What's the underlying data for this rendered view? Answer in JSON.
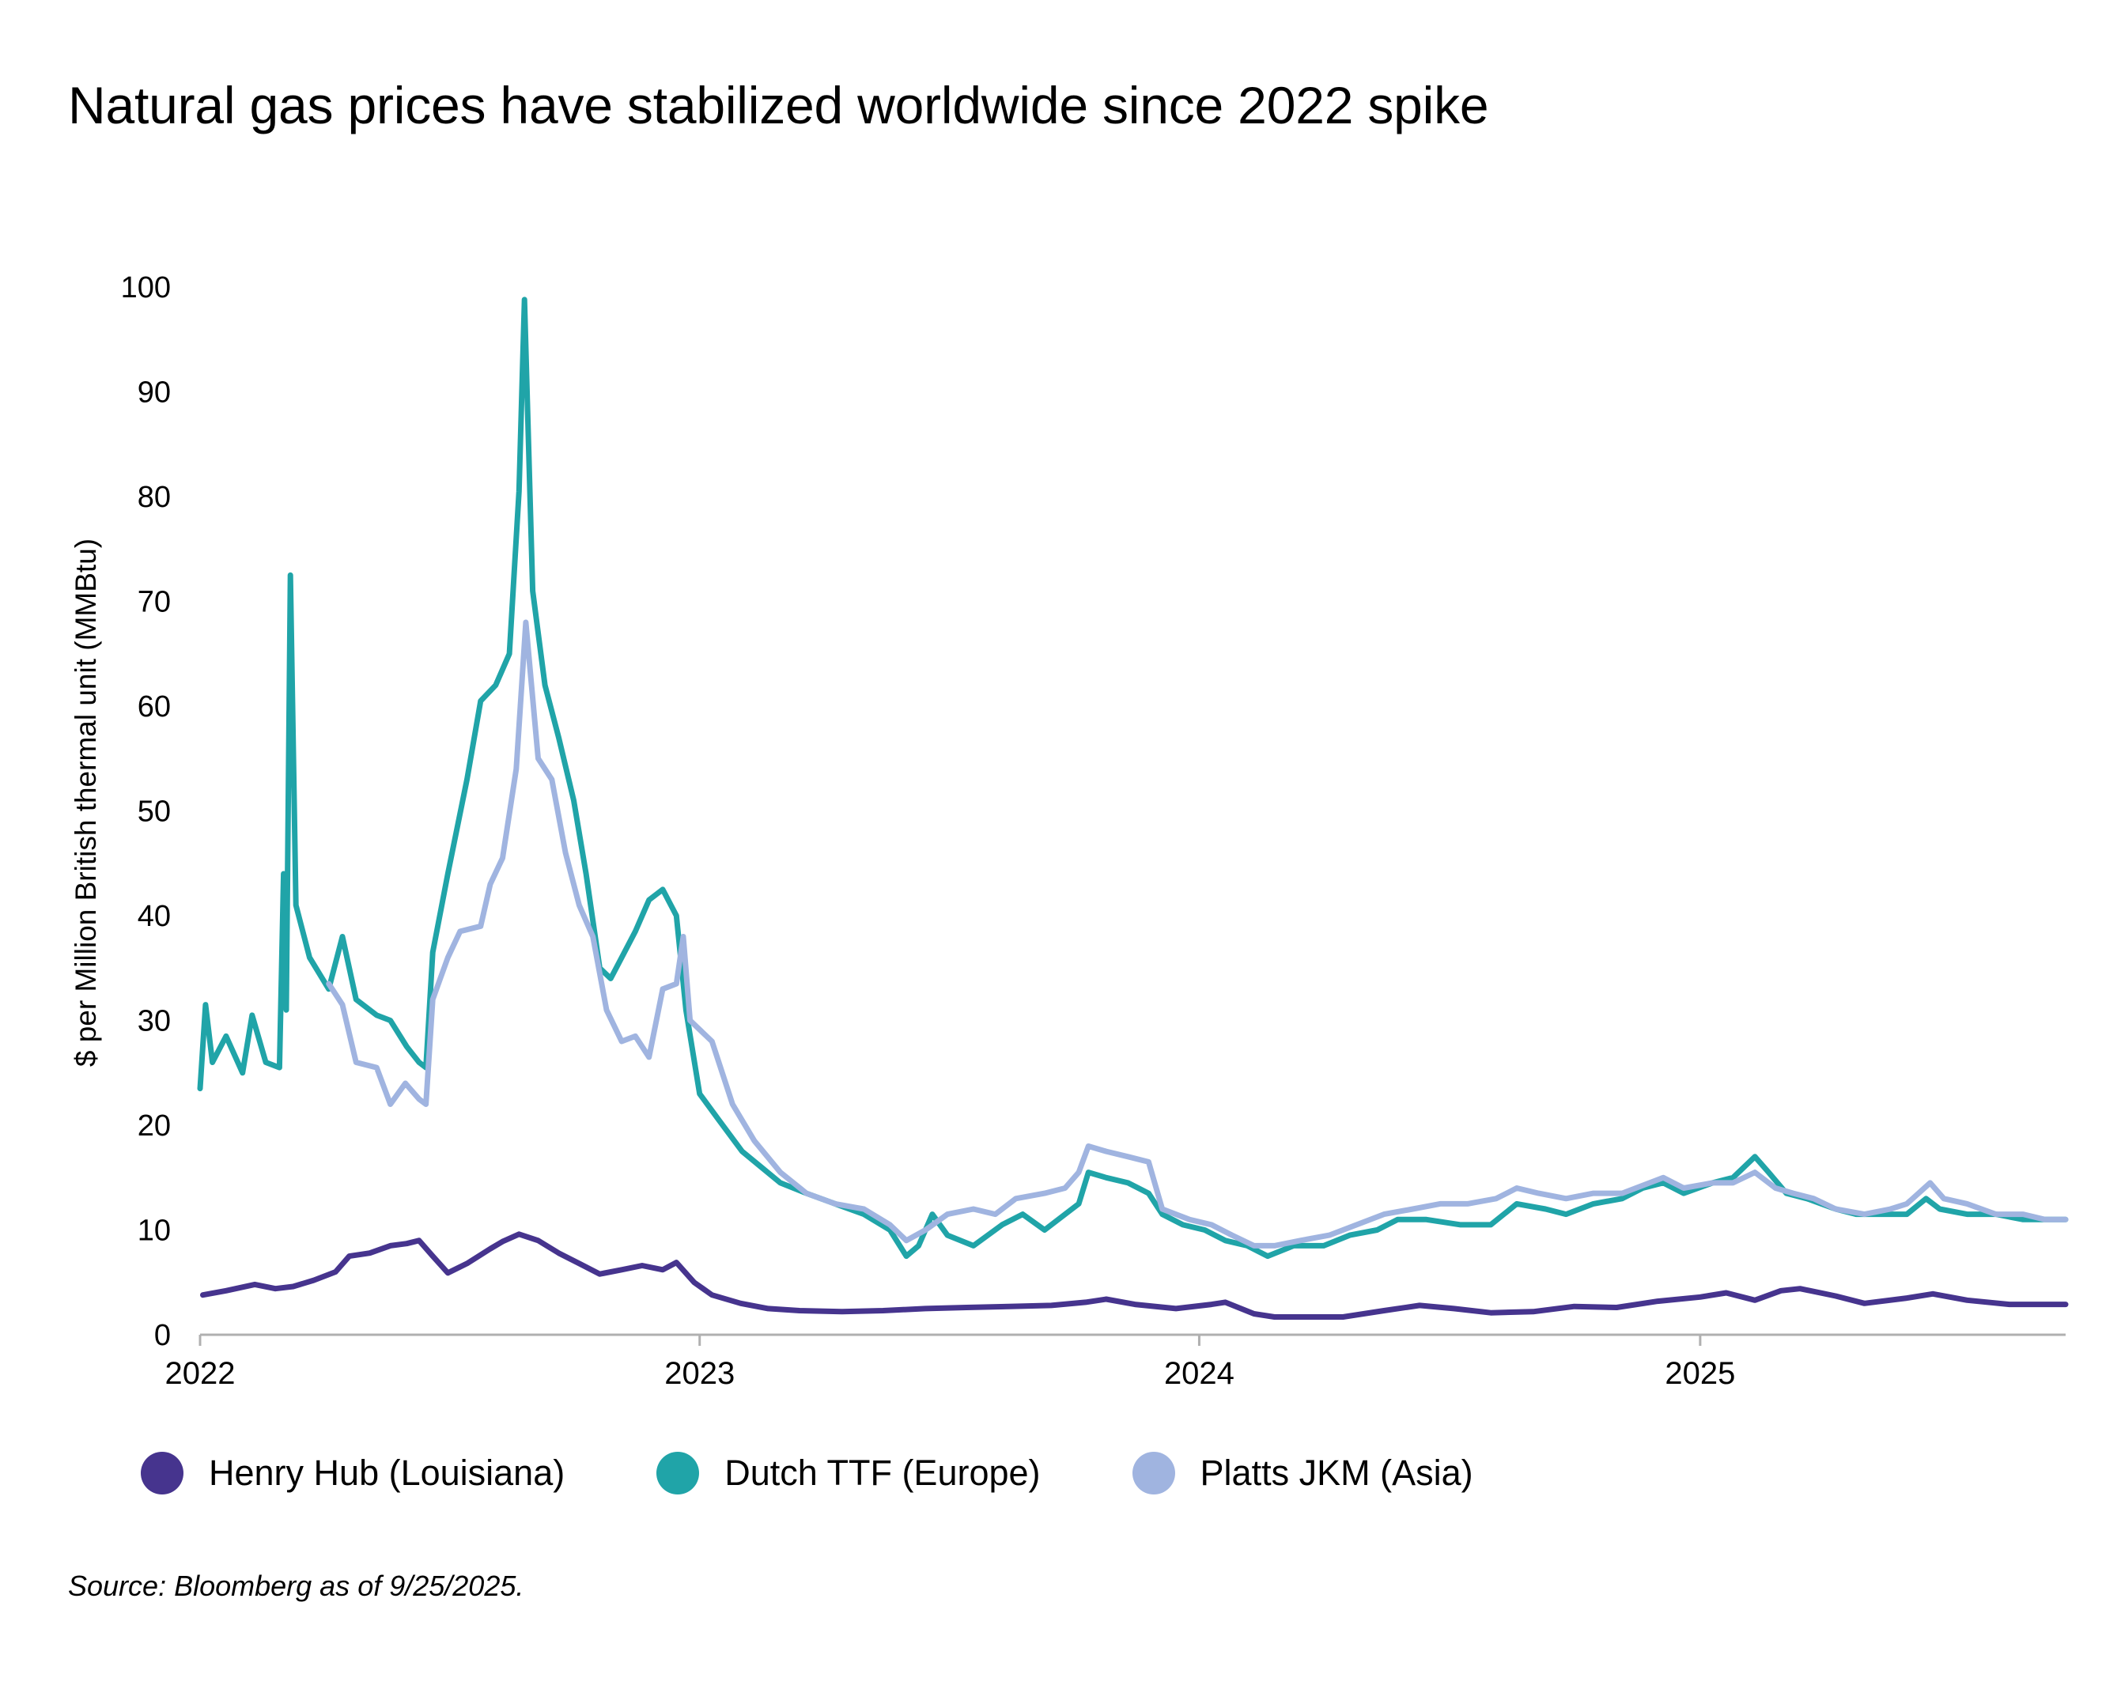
{
  "title": "Natural gas prices have stabilized worldwide since 2022 spike",
  "source": "Source: Bloomberg as of 9/25/2025.",
  "colors": {
    "henry_hub": "#46348E",
    "dutch_ttf": "#20A4A8",
    "platts_jkm": "#A0B4E0",
    "axis": "#B0B0B0"
  },
  "legend": [
    {
      "label": "Henry Hub (Louisiana)",
      "color": "#46348E"
    },
    {
      "label": "Dutch TTF (Europe)",
      "color": "#20A4A8"
    },
    {
      "label": "Platts JKM (Asia)",
      "color": "#A0B4E0"
    }
  ],
  "chart_data": {
    "type": "line",
    "title": "Natural gas prices have stabilized worldwide since 2022 spike",
    "xlabel": "",
    "ylabel": "$ per Million British thermal unit (MMBtu)",
    "ylim": [
      0,
      100
    ],
    "yticks": [
      0,
      10,
      20,
      30,
      40,
      50,
      60,
      70,
      80,
      90,
      100
    ],
    "xlim": [
      "2022-01-01",
      "2025-09-25"
    ],
    "xticks": [
      {
        "label": "2022",
        "value": "2022-01-01"
      },
      {
        "label": "2023",
        "value": "2023-01-01"
      },
      {
        "label": "2024",
        "value": "2024-01-01"
      },
      {
        "label": "2025",
        "value": "2025-01-01"
      }
    ],
    "grid": false,
    "legend_position": "bottom",
    "series": [
      {
        "name": "Henry Hub (Louisiana)",
        "color": "#46348E",
        "points": [
          [
            "2022-01-03",
            3.8
          ],
          [
            "2022-01-20",
            4.2
          ],
          [
            "2022-02-10",
            4.8
          ],
          [
            "2022-02-25",
            4.4
          ],
          [
            "2022-03-10",
            4.6
          ],
          [
            "2022-03-25",
            5.2
          ],
          [
            "2022-04-10",
            6.0
          ],
          [
            "2022-04-20",
            7.5
          ],
          [
            "2022-05-05",
            7.8
          ],
          [
            "2022-05-20",
            8.5
          ],
          [
            "2022-06-01",
            8.7
          ],
          [
            "2022-06-10",
            9.0
          ],
          [
            "2022-06-20",
            7.5
          ],
          [
            "2022-07-01",
            5.9
          ],
          [
            "2022-07-15",
            6.8
          ],
          [
            "2022-08-01",
            8.2
          ],
          [
            "2022-08-10",
            8.9
          ],
          [
            "2022-08-22",
            9.6
          ],
          [
            "2022-09-05",
            9.0
          ],
          [
            "2022-09-20",
            7.8
          ],
          [
            "2022-10-05",
            6.8
          ],
          [
            "2022-10-20",
            5.8
          ],
          [
            "2022-11-05",
            6.2
          ],
          [
            "2022-11-20",
            6.6
          ],
          [
            "2022-12-05",
            6.2
          ],
          [
            "2022-12-15",
            6.9
          ],
          [
            "2022-12-28",
            5.0
          ],
          [
            "2023-01-10",
            3.8
          ],
          [
            "2023-01-31",
            3.0
          ],
          [
            "2023-02-20",
            2.5
          ],
          [
            "2023-03-15",
            2.3
          ],
          [
            "2023-04-15",
            2.2
          ],
          [
            "2023-05-15",
            2.3
          ],
          [
            "2023-06-15",
            2.5
          ],
          [
            "2023-07-15",
            2.6
          ],
          [
            "2023-08-15",
            2.7
          ],
          [
            "2023-09-15",
            2.8
          ],
          [
            "2023-10-10",
            3.1
          ],
          [
            "2023-10-25",
            3.4
          ],
          [
            "2023-11-15",
            2.9
          ],
          [
            "2023-12-15",
            2.5
          ],
          [
            "2024-01-10",
            2.9
          ],
          [
            "2024-01-20",
            3.1
          ],
          [
            "2024-02-10",
            2.0
          ],
          [
            "2024-02-25",
            1.7
          ],
          [
            "2024-03-15",
            1.7
          ],
          [
            "2024-04-15",
            1.7
          ],
          [
            "2024-05-15",
            2.3
          ],
          [
            "2024-06-10",
            2.8
          ],
          [
            "2024-07-05",
            2.5
          ],
          [
            "2024-08-01",
            2.1
          ],
          [
            "2024-09-01",
            2.2
          ],
          [
            "2024-10-01",
            2.7
          ],
          [
            "2024-11-01",
            2.6
          ],
          [
            "2024-12-01",
            3.2
          ],
          [
            "2025-01-01",
            3.6
          ],
          [
            "2025-01-20",
            4.0
          ],
          [
            "2025-02-10",
            3.3
          ],
          [
            "2025-03-01",
            4.2
          ],
          [
            "2025-03-15",
            4.4
          ],
          [
            "2025-04-10",
            3.7
          ],
          [
            "2025-05-01",
            3.0
          ],
          [
            "2025-06-01",
            3.5
          ],
          [
            "2025-06-20",
            3.9
          ],
          [
            "2025-07-15",
            3.3
          ],
          [
            "2025-08-15",
            2.9
          ],
          [
            "2025-09-25",
            2.9
          ]
        ]
      },
      {
        "name": "Dutch TTF (Europe)",
        "color": "#20A4A8",
        "points": [
          [
            "2022-01-01",
            23.5
          ],
          [
            "2022-01-05",
            31.5
          ],
          [
            "2022-01-10",
            26.0
          ],
          [
            "2022-01-20",
            28.5
          ],
          [
            "2022-02-01",
            25.0
          ],
          [
            "2022-02-08",
            30.5
          ],
          [
            "2022-02-18",
            26.0
          ],
          [
            "2022-02-28",
            25.5
          ],
          [
            "2022-03-03",
            44.0
          ],
          [
            "2022-03-05",
            31.0
          ],
          [
            "2022-03-08",
            72.5
          ],
          [
            "2022-03-12",
            41.0
          ],
          [
            "2022-03-22",
            36.0
          ],
          [
            "2022-04-05",
            33.0
          ],
          [
            "2022-04-15",
            38.0
          ],
          [
            "2022-04-25",
            32.0
          ],
          [
            "2022-05-10",
            30.5
          ],
          [
            "2022-05-20",
            30.0
          ],
          [
            "2022-06-01",
            27.5
          ],
          [
            "2022-06-10",
            26.0
          ],
          [
            "2022-06-15",
            25.5
          ],
          [
            "2022-06-20",
            36.5
          ],
          [
            "2022-07-01",
            44.0
          ],
          [
            "2022-07-15",
            53.0
          ],
          [
            "2022-07-25",
            60.5
          ],
          [
            "2022-08-05",
            62.0
          ],
          [
            "2022-08-15",
            65.0
          ],
          [
            "2022-08-22",
            80.5
          ],
          [
            "2022-08-26",
            98.8
          ],
          [
            "2022-09-01",
            71.0
          ],
          [
            "2022-09-10",
            62.0
          ],
          [
            "2022-09-20",
            57.0
          ],
          [
            "2022-10-01",
            51.0
          ],
          [
            "2022-10-10",
            44.0
          ],
          [
            "2022-10-20",
            35.0
          ],
          [
            "2022-10-28",
            34.0
          ],
          [
            "2022-11-05",
            36.0
          ],
          [
            "2022-11-15",
            38.5
          ],
          [
            "2022-11-25",
            41.5
          ],
          [
            "2022-12-05",
            42.5
          ],
          [
            "2022-12-15",
            40.0
          ],
          [
            "2022-12-22",
            31.0
          ],
          [
            "2023-01-01",
            23.0
          ],
          [
            "2023-01-15",
            20.5
          ],
          [
            "2023-02-01",
            17.5
          ],
          [
            "2023-02-15",
            16.0
          ],
          [
            "2023-03-01",
            14.5
          ],
          [
            "2023-03-20",
            13.5
          ],
          [
            "2023-04-10",
            12.5
          ],
          [
            "2023-05-01",
            11.5
          ],
          [
            "2023-05-20",
            10.0
          ],
          [
            "2023-06-01",
            7.5
          ],
          [
            "2023-06-10",
            8.5
          ],
          [
            "2023-06-20",
            11.5
          ],
          [
            "2023-07-01",
            9.5
          ],
          [
            "2023-07-20",
            8.5
          ],
          [
            "2023-08-10",
            10.5
          ],
          [
            "2023-08-25",
            11.5
          ],
          [
            "2023-09-10",
            10.0
          ],
          [
            "2023-09-25",
            11.5
          ],
          [
            "2023-10-05",
            12.5
          ],
          [
            "2023-10-12",
            15.5
          ],
          [
            "2023-10-25",
            15.0
          ],
          [
            "2023-11-10",
            14.5
          ],
          [
            "2023-11-25",
            13.5
          ],
          [
            "2023-12-05",
            11.5
          ],
          [
            "2023-12-20",
            10.5
          ],
          [
            "2024-01-05",
            10.0
          ],
          [
            "2024-01-20",
            9.0
          ],
          [
            "2024-02-05",
            8.5
          ],
          [
            "2024-02-20",
            7.5
          ],
          [
            "2024-03-10",
            8.5
          ],
          [
            "2024-04-01",
            8.5
          ],
          [
            "2024-04-20",
            9.5
          ],
          [
            "2024-05-10",
            10.0
          ],
          [
            "2024-05-25",
            11.0
          ],
          [
            "2024-06-15",
            11.0
          ],
          [
            "2024-07-10",
            10.5
          ],
          [
            "2024-08-01",
            10.5
          ],
          [
            "2024-08-20",
            12.5
          ],
          [
            "2024-09-10",
            12.0
          ],
          [
            "2024-09-25",
            11.5
          ],
          [
            "2024-10-15",
            12.5
          ],
          [
            "2024-11-05",
            13.0
          ],
          [
            "2024-11-20",
            14.0
          ],
          [
            "2024-12-05",
            14.5
          ],
          [
            "2024-12-20",
            13.5
          ],
          [
            "2025-01-10",
            14.5
          ],
          [
            "2025-01-25",
            15.0
          ],
          [
            "2025-02-10",
            17.0
          ],
          [
            "2025-02-20",
            15.5
          ],
          [
            "2025-03-05",
            13.5
          ],
          [
            "2025-03-20",
            13.0
          ],
          [
            "2025-04-10",
            12.0
          ],
          [
            "2025-04-25",
            11.5
          ],
          [
            "2025-05-15",
            11.5
          ],
          [
            "2025-06-01",
            11.5
          ],
          [
            "2025-06-15",
            13.0
          ],
          [
            "2025-06-25",
            12.0
          ],
          [
            "2025-07-15",
            11.5
          ],
          [
            "2025-08-05",
            11.5
          ],
          [
            "2025-08-25",
            11.0
          ],
          [
            "2025-09-10",
            11.0
          ],
          [
            "2025-09-25",
            11.0
          ]
        ]
      },
      {
        "name": "Platts JKM (Asia)",
        "color": "#A0B4E0",
        "points": [
          [
            "2022-04-05",
            33.5
          ],
          [
            "2022-04-15",
            31.5
          ],
          [
            "2022-04-25",
            26.0
          ],
          [
            "2022-05-10",
            25.5
          ],
          [
            "2022-05-20",
            22.0
          ],
          [
            "2022-05-31",
            24.0
          ],
          [
            "2022-06-10",
            22.5
          ],
          [
            "2022-06-15",
            22.0
          ],
          [
            "2022-06-20",
            32.0
          ],
          [
            "2022-07-01",
            36.0
          ],
          [
            "2022-07-10",
            38.5
          ],
          [
            "2022-07-25",
            39.0
          ],
          [
            "2022-08-01",
            43.0
          ],
          [
            "2022-08-10",
            45.5
          ],
          [
            "2022-08-20",
            54.0
          ],
          [
            "2022-08-27",
            68.0
          ],
          [
            "2022-09-05",
            55.0
          ],
          [
            "2022-09-15",
            53.0
          ],
          [
            "2022-09-25",
            46.0
          ],
          [
            "2022-10-05",
            41.0
          ],
          [
            "2022-10-15",
            38.0
          ],
          [
            "2022-10-25",
            31.0
          ],
          [
            "2022-11-05",
            28.0
          ],
          [
            "2022-11-15",
            28.5
          ],
          [
            "2022-11-25",
            26.5
          ],
          [
            "2022-12-05",
            33.0
          ],
          [
            "2022-12-15",
            33.5
          ],
          [
            "2022-12-20",
            38.0
          ],
          [
            "2022-12-25",
            30.0
          ],
          [
            "2023-01-10",
            28.0
          ],
          [
            "2023-01-25",
            22.0
          ],
          [
            "2023-02-10",
            18.5
          ],
          [
            "2023-03-01",
            15.5
          ],
          [
            "2023-03-20",
            13.5
          ],
          [
            "2023-04-10",
            12.5
          ],
          [
            "2023-05-01",
            12.0
          ],
          [
            "2023-05-20",
            10.5
          ],
          [
            "2023-06-01",
            9.0
          ],
          [
            "2023-06-15",
            10.0
          ],
          [
            "2023-07-01",
            11.5
          ],
          [
            "2023-07-20",
            12.0
          ],
          [
            "2023-08-05",
            11.5
          ],
          [
            "2023-08-20",
            13.0
          ],
          [
            "2023-09-10",
            13.5
          ],
          [
            "2023-09-25",
            14.0
          ],
          [
            "2023-10-05",
            15.5
          ],
          [
            "2023-10-12",
            18.0
          ],
          [
            "2023-10-25",
            17.5
          ],
          [
            "2023-11-10",
            17.0
          ],
          [
            "2023-11-25",
            16.5
          ],
          [
            "2023-12-05",
            12.0
          ],
          [
            "2023-12-25",
            11.0
          ],
          [
            "2024-01-10",
            10.5
          ],
          [
            "2024-01-25",
            9.5
          ],
          [
            "2024-02-10",
            8.5
          ],
          [
            "2024-02-25",
            8.5
          ],
          [
            "2024-03-15",
            9.0
          ],
          [
            "2024-04-05",
            9.5
          ],
          [
            "2024-04-25",
            10.5
          ],
          [
            "2024-05-15",
            11.5
          ],
          [
            "2024-06-05",
            12.0
          ],
          [
            "2024-06-25",
            12.5
          ],
          [
            "2024-07-15",
            12.5
          ],
          [
            "2024-08-05",
            13.0
          ],
          [
            "2024-08-20",
            14.0
          ],
          [
            "2024-09-05",
            13.5
          ],
          [
            "2024-09-25",
            13.0
          ],
          [
            "2024-10-15",
            13.5
          ],
          [
            "2024-11-05",
            13.5
          ],
          [
            "2024-11-25",
            14.5
          ],
          [
            "2024-12-05",
            15.0
          ],
          [
            "2024-12-20",
            14.0
          ],
          [
            "2025-01-10",
            14.5
          ],
          [
            "2025-01-25",
            14.5
          ],
          [
            "2025-02-10",
            15.5
          ],
          [
            "2025-02-25",
            14.0
          ],
          [
            "2025-03-10",
            13.5
          ],
          [
            "2025-03-25",
            13.0
          ],
          [
            "2025-04-10",
            12.0
          ],
          [
            "2025-05-01",
            11.5
          ],
          [
            "2025-05-20",
            12.0
          ],
          [
            "2025-06-01",
            12.5
          ],
          [
            "2025-06-18",
            14.5
          ],
          [
            "2025-06-28",
            13.0
          ],
          [
            "2025-07-15",
            12.5
          ],
          [
            "2025-08-05",
            11.5
          ],
          [
            "2025-08-25",
            11.5
          ],
          [
            "2025-09-10",
            11.0
          ],
          [
            "2025-09-25",
            11.0
          ]
        ]
      }
    ]
  }
}
